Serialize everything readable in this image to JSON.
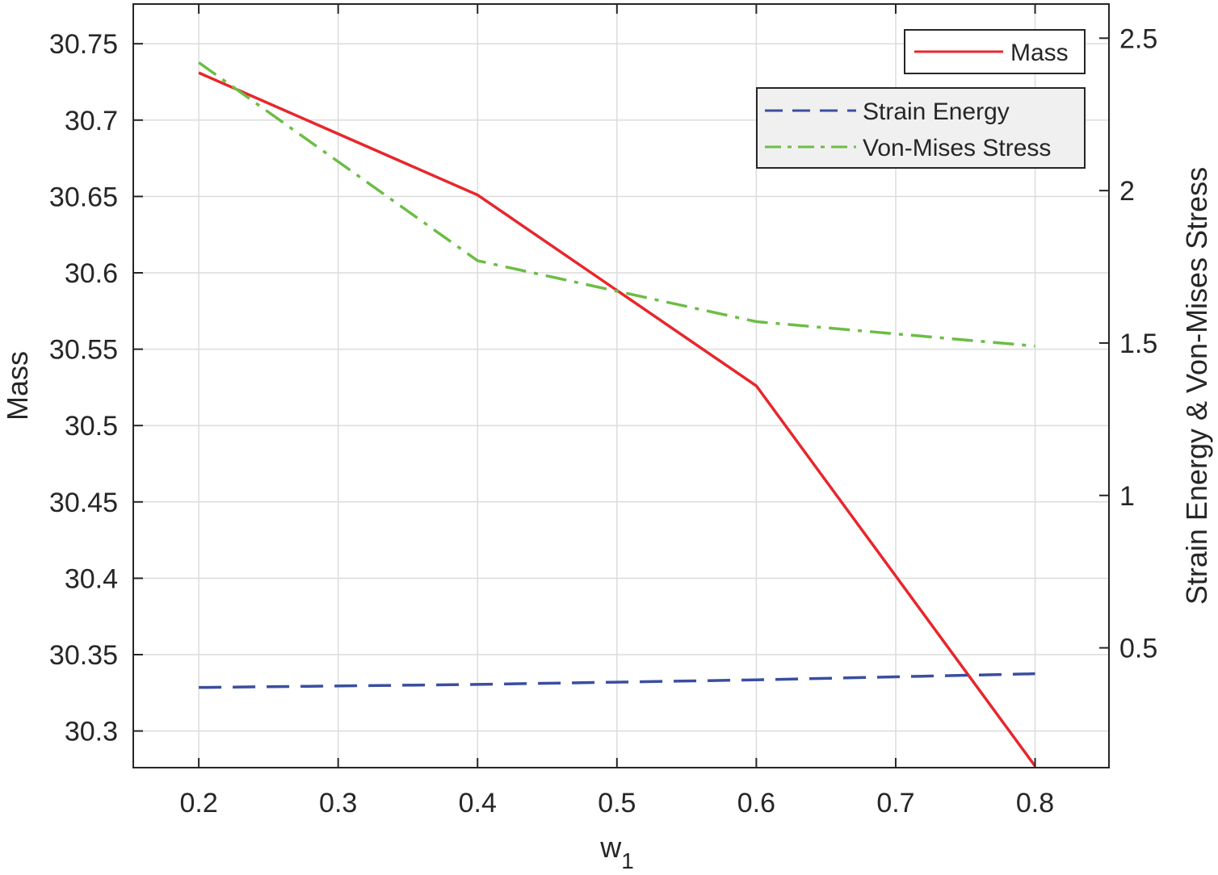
{
  "chart_data": {
    "type": "line",
    "title": "",
    "xlabel": "w",
    "xlabel_subscript": "1",
    "ylabel_left": "Mass",
    "ylabel_right": "Strain Energy & Von-Mises Stress",
    "xlim": [
      0.153,
      0.853
    ],
    "ylim_left": [
      30.276,
      30.776
    ],
    "ylim_right": [
      0.107,
      2.612
    ],
    "xticks": [
      0.2,
      0.3,
      0.4,
      0.5,
      0.6,
      0.7,
      0.8
    ],
    "xtick_labels": [
      "0.2",
      "0.3",
      "0.4",
      "0.5",
      "0.6",
      "0.7",
      "0.8"
    ],
    "yticks_left": [
      30.3,
      30.35,
      30.4,
      30.45,
      30.5,
      30.55,
      30.6,
      30.65,
      30.7,
      30.75
    ],
    "ytick_labels_left": [
      "30.3",
      "30.35",
      "30.4",
      "30.45",
      "30.5",
      "30.55",
      "30.6",
      "30.65",
      "30.7",
      "30.75"
    ],
    "yticks_right": [
      0.5,
      1,
      1.5,
      2,
      2.5
    ],
    "ytick_labels_right": [
      "0.5",
      "1",
      "1.5",
      "2",
      "2.5"
    ],
    "grid": true,
    "x": [
      0.2,
      0.4,
      0.6,
      0.8
    ],
    "series": [
      {
        "name": "Mass",
        "axis": "left",
        "color": "#e8262b",
        "style": "solid",
        "values": [
          30.731,
          30.651,
          30.526,
          30.277
        ]
      },
      {
        "name": "Strain Energy",
        "axis": "right",
        "color": "#3a4ea0",
        "style": "dashed",
        "values": [
          0.37,
          0.38,
          0.395,
          0.415
        ]
      },
      {
        "name": "Von-Mises Stress",
        "axis": "right",
        "color": "#6cbd45",
        "style": "dashdot",
        "values": [
          2.42,
          1.77,
          1.57,
          1.49
        ]
      }
    ],
    "legends": [
      {
        "placement": "top-right",
        "entries": [
          "Mass"
        ],
        "background": "#ffffff"
      },
      {
        "placement": "top-right",
        "entries": [
          "Strain Energy",
          "Von-Mises Stress"
        ],
        "background": "#f0f0f0"
      }
    ]
  }
}
